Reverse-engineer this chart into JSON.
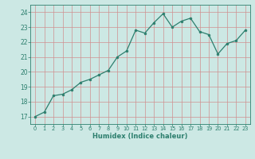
{
  "x": [
    0,
    1,
    2,
    3,
    4,
    5,
    6,
    7,
    8,
    9,
    10,
    11,
    12,
    13,
    14,
    15,
    16,
    17,
    18,
    19,
    20,
    21,
    22,
    23
  ],
  "y": [
    17.0,
    17.3,
    18.4,
    18.5,
    18.8,
    19.3,
    19.5,
    19.8,
    20.1,
    21.0,
    21.4,
    22.8,
    22.6,
    23.3,
    23.9,
    23.0,
    23.4,
    23.6,
    22.7,
    22.5,
    21.2,
    21.9,
    22.1,
    22.8
  ],
  "line_color": "#2d7f6e",
  "marker": "o",
  "marker_size": 2.0,
  "linewidth": 0.9,
  "xlabel": "Humidex (Indice chaleur)",
  "xlim": [
    -0.5,
    23.5
  ],
  "ylim": [
    16.5,
    24.5
  ],
  "yticks": [
    17,
    18,
    19,
    20,
    21,
    22,
    23,
    24
  ],
  "xticks": [
    0,
    1,
    2,
    3,
    4,
    5,
    6,
    7,
    8,
    9,
    10,
    11,
    12,
    13,
    14,
    15,
    16,
    17,
    18,
    19,
    20,
    21,
    22,
    23
  ],
  "bg_color": "#cce8e4",
  "grid_color": "#d09090",
  "grid_alpha": 1.0,
  "axis_color": "#2d7f6e",
  "xlabel_fontsize": 6.0,
  "xtick_fontsize": 4.8,
  "ytick_fontsize": 5.5
}
